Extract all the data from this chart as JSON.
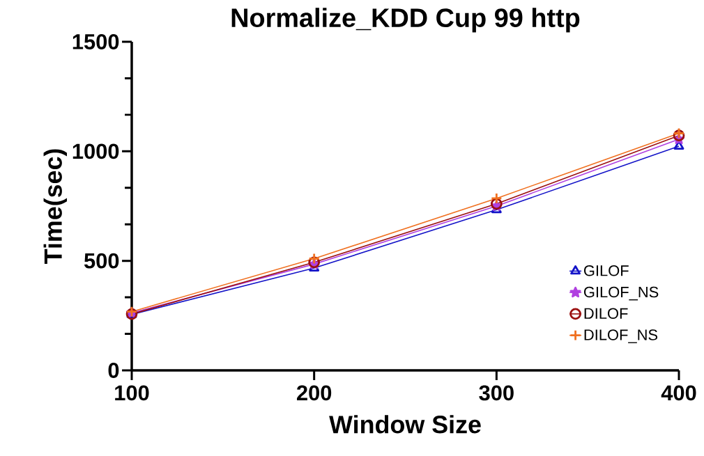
{
  "chart_data": {
    "type": "line",
    "title": "Normalize_KDD Cup 99 http",
    "xlabel": "Window Size",
    "ylabel": "Time(sec)",
    "x": [
      100,
      200,
      300,
      400
    ],
    "series": [
      {
        "name": "GILOF",
        "color": "#1414c8",
        "marker": "triangle",
        "values": [
          255,
          467,
          733,
          1023
        ]
      },
      {
        "name": "GILOF_NS",
        "color": "#b040e0",
        "marker": "star",
        "values": [
          262,
          485,
          750,
          1055
        ]
      },
      {
        "name": "DILOF",
        "color": "#9b1010",
        "marker": "circle",
        "values": [
          257,
          493,
          760,
          1072
        ]
      },
      {
        "name": "DILOF_NS",
        "color": "#f07020",
        "marker": "cross",
        "values": [
          268,
          510,
          785,
          1082
        ]
      }
    ],
    "xlim": [
      100,
      400
    ],
    "xticks": [
      100,
      200,
      300,
      400
    ],
    "ylim": [
      0,
      1500
    ],
    "yticks": [
      0,
      500,
      1000,
      1500
    ],
    "legend": "bottom right",
    "grid": false,
    "line_style": "solid"
  }
}
